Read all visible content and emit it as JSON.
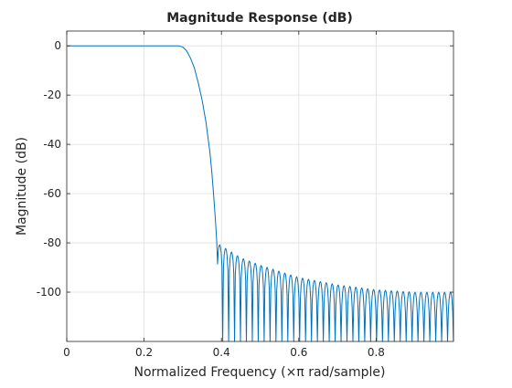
{
  "chart_data": {
    "type": "line",
    "title": "Magnitude Response (dB)",
    "xlabel": "Normalized Frequency (×π rad/sample)",
    "ylabel": "Magnitude (dB)",
    "xlim": [
      0,
      1
    ],
    "ylim": [
      -120,
      6
    ],
    "grid": true,
    "x_ticks": [
      0,
      0.2,
      0.4,
      0.6,
      0.8
    ],
    "x_tick_labels": [
      "0",
      "0.2",
      "0.4",
      "0.6",
      "0.8"
    ],
    "y_ticks": [
      0,
      -20,
      -40,
      -60,
      -80,
      -100
    ],
    "y_tick_labels": [
      "0",
      "-20",
      "-40",
      "-60",
      "-80",
      "-100"
    ],
    "series": [
      {
        "color": "#0072bd",
        "passband": {
          "x": [
            0,
            0.29
          ],
          "y": [
            0,
            0
          ]
        },
        "transition": {
          "x": [
            0.29,
            0.3,
            0.31,
            0.32,
            0.33,
            0.34,
            0.35,
            0.36,
            0.37,
            0.375,
            0.38,
            0.385,
            0.388
          ],
          "y": [
            0,
            -0.5,
            -2,
            -5,
            -9,
            -15,
            -22,
            -31,
            -43,
            -51,
            -61,
            -72,
            -80
          ]
        },
        "stopband": {
          "x_start": 0.388,
          "x_end": 1.0,
          "lobe_count": 40,
          "peaks": {
            "x": [
              0.388,
              0.45,
              0.5,
              0.6,
              0.7,
              0.8,
              0.9,
              1.0
            ],
            "y": [
              -80,
              -86,
              -89,
              -94,
              -97,
              -99,
              -100,
              -100
            ]
          },
          "floor": -120
        }
      }
    ]
  }
}
